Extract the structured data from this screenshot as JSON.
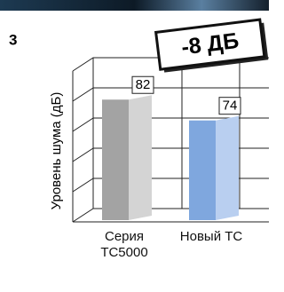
{
  "number": "3",
  "badge": "-8 ДБ",
  "chart_data": {
    "type": "bar3d",
    "y_label": "Уровень шума (дБ)",
    "categories": [
      "Серия ТС5000",
      "Новый ТС"
    ],
    "values": [
      82,
      74
    ],
    "colors": [
      "#a3a3a3",
      "#7fa7de"
    ],
    "side_colors": [
      "#d4d4d4",
      "#b9cff0"
    ],
    "ylim": [
      35,
      93
    ]
  }
}
